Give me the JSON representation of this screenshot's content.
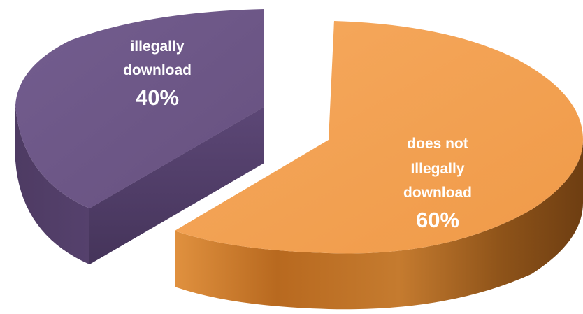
{
  "chart_data": {
    "type": "pie",
    "style": "3d-exploded",
    "title": "",
    "slices": [
      {
        "label_lines": [
          "illegally",
          "download"
        ],
        "value": 40,
        "value_label": "40%",
        "color": "#6b5486"
      },
      {
        "label_lines": [
          "does not",
          "Illegally",
          "download"
        ],
        "value": 60,
        "value_label": "60%",
        "color": "#f2a052"
      }
    ]
  }
}
